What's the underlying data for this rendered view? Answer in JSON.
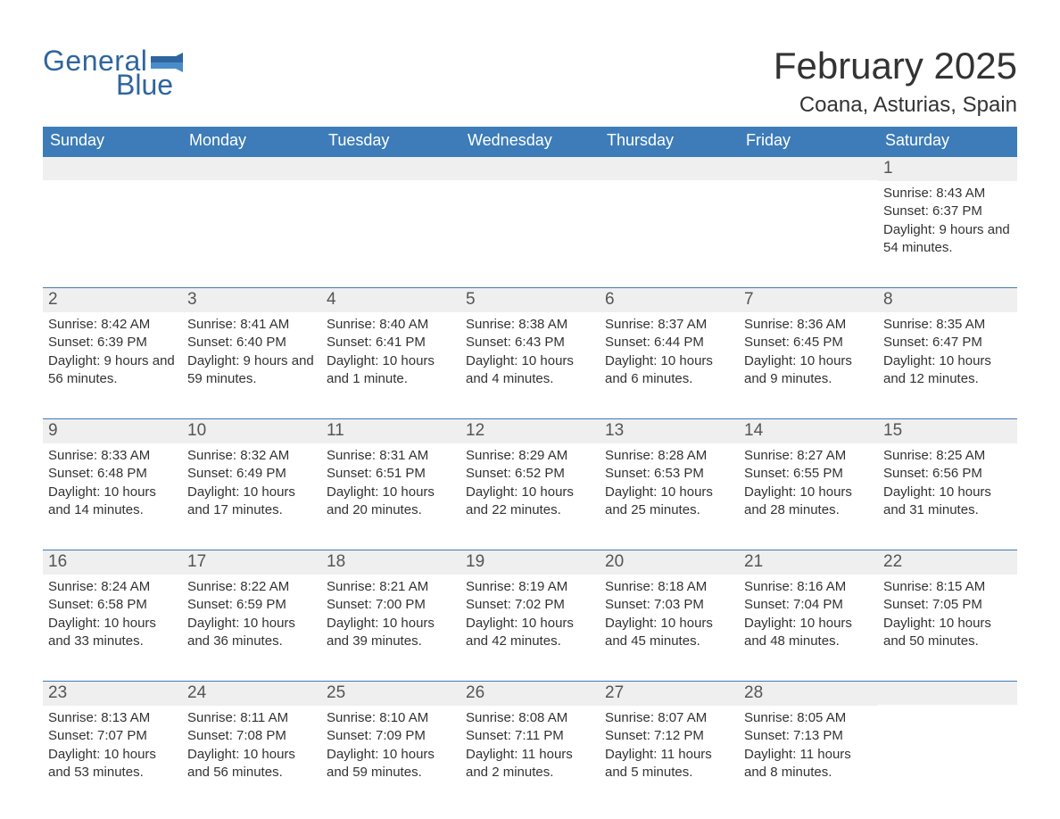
{
  "logo": {
    "word1": "General",
    "word2": "Blue",
    "flag_color": "#2f659e"
  },
  "header": {
    "month_title": "February 2025",
    "location": "Coana, Asturias, Spain"
  },
  "weekdays": [
    "Sunday",
    "Monday",
    "Tuesday",
    "Wednesday",
    "Thursday",
    "Friday",
    "Saturday"
  ],
  "colors": {
    "header_bg": "#3d7cb8",
    "header_text": "#ffffff",
    "strip_bg": "#efefef",
    "rule": "#3d7cb8",
    "text": "#333333",
    "logo": "#2f659e"
  },
  "weeks": [
    [
      {
        "day": "",
        "sunrise": "",
        "sunset": "",
        "daylight": ""
      },
      {
        "day": "",
        "sunrise": "",
        "sunset": "",
        "daylight": ""
      },
      {
        "day": "",
        "sunrise": "",
        "sunset": "",
        "daylight": ""
      },
      {
        "day": "",
        "sunrise": "",
        "sunset": "",
        "daylight": ""
      },
      {
        "day": "",
        "sunrise": "",
        "sunset": "",
        "daylight": ""
      },
      {
        "day": "",
        "sunrise": "",
        "sunset": "",
        "daylight": ""
      },
      {
        "day": "1",
        "sunrise": "Sunrise: 8:43 AM",
        "sunset": "Sunset: 6:37 PM",
        "daylight": "Daylight: 9 hours and 54 minutes."
      }
    ],
    [
      {
        "day": "2",
        "sunrise": "Sunrise: 8:42 AM",
        "sunset": "Sunset: 6:39 PM",
        "daylight": "Daylight: 9 hours and 56 minutes."
      },
      {
        "day": "3",
        "sunrise": "Sunrise: 8:41 AM",
        "sunset": "Sunset: 6:40 PM",
        "daylight": "Daylight: 9 hours and 59 minutes."
      },
      {
        "day": "4",
        "sunrise": "Sunrise: 8:40 AM",
        "sunset": "Sunset: 6:41 PM",
        "daylight": "Daylight: 10 hours and 1 minute."
      },
      {
        "day": "5",
        "sunrise": "Sunrise: 8:38 AM",
        "sunset": "Sunset: 6:43 PM",
        "daylight": "Daylight: 10 hours and 4 minutes."
      },
      {
        "day": "6",
        "sunrise": "Sunrise: 8:37 AM",
        "sunset": "Sunset: 6:44 PM",
        "daylight": "Daylight: 10 hours and 6 minutes."
      },
      {
        "day": "7",
        "sunrise": "Sunrise: 8:36 AM",
        "sunset": "Sunset: 6:45 PM",
        "daylight": "Daylight: 10 hours and 9 minutes."
      },
      {
        "day": "8",
        "sunrise": "Sunrise: 8:35 AM",
        "sunset": "Sunset: 6:47 PM",
        "daylight": "Daylight: 10 hours and 12 minutes."
      }
    ],
    [
      {
        "day": "9",
        "sunrise": "Sunrise: 8:33 AM",
        "sunset": "Sunset: 6:48 PM",
        "daylight": "Daylight: 10 hours and 14 minutes."
      },
      {
        "day": "10",
        "sunrise": "Sunrise: 8:32 AM",
        "sunset": "Sunset: 6:49 PM",
        "daylight": "Daylight: 10 hours and 17 minutes."
      },
      {
        "day": "11",
        "sunrise": "Sunrise: 8:31 AM",
        "sunset": "Sunset: 6:51 PM",
        "daylight": "Daylight: 10 hours and 20 minutes."
      },
      {
        "day": "12",
        "sunrise": "Sunrise: 8:29 AM",
        "sunset": "Sunset: 6:52 PM",
        "daylight": "Daylight: 10 hours and 22 minutes."
      },
      {
        "day": "13",
        "sunrise": "Sunrise: 8:28 AM",
        "sunset": "Sunset: 6:53 PM",
        "daylight": "Daylight: 10 hours and 25 minutes."
      },
      {
        "day": "14",
        "sunrise": "Sunrise: 8:27 AM",
        "sunset": "Sunset: 6:55 PM",
        "daylight": "Daylight: 10 hours and 28 minutes."
      },
      {
        "day": "15",
        "sunrise": "Sunrise: 8:25 AM",
        "sunset": "Sunset: 6:56 PM",
        "daylight": "Daylight: 10 hours and 31 minutes."
      }
    ],
    [
      {
        "day": "16",
        "sunrise": "Sunrise: 8:24 AM",
        "sunset": "Sunset: 6:58 PM",
        "daylight": "Daylight: 10 hours and 33 minutes."
      },
      {
        "day": "17",
        "sunrise": "Sunrise: 8:22 AM",
        "sunset": "Sunset: 6:59 PM",
        "daylight": "Daylight: 10 hours and 36 minutes."
      },
      {
        "day": "18",
        "sunrise": "Sunrise: 8:21 AM",
        "sunset": "Sunset: 7:00 PM",
        "daylight": "Daylight: 10 hours and 39 minutes."
      },
      {
        "day": "19",
        "sunrise": "Sunrise: 8:19 AM",
        "sunset": "Sunset: 7:02 PM",
        "daylight": "Daylight: 10 hours and 42 minutes."
      },
      {
        "day": "20",
        "sunrise": "Sunrise: 8:18 AM",
        "sunset": "Sunset: 7:03 PM",
        "daylight": "Daylight: 10 hours and 45 minutes."
      },
      {
        "day": "21",
        "sunrise": "Sunrise: 8:16 AM",
        "sunset": "Sunset: 7:04 PM",
        "daylight": "Daylight: 10 hours and 48 minutes."
      },
      {
        "day": "22",
        "sunrise": "Sunrise: 8:15 AM",
        "sunset": "Sunset: 7:05 PM",
        "daylight": "Daylight: 10 hours and 50 minutes."
      }
    ],
    [
      {
        "day": "23",
        "sunrise": "Sunrise: 8:13 AM",
        "sunset": "Sunset: 7:07 PM",
        "daylight": "Daylight: 10 hours and 53 minutes."
      },
      {
        "day": "24",
        "sunrise": "Sunrise: 8:11 AM",
        "sunset": "Sunset: 7:08 PM",
        "daylight": "Daylight: 10 hours and 56 minutes."
      },
      {
        "day": "25",
        "sunrise": "Sunrise: 8:10 AM",
        "sunset": "Sunset: 7:09 PM",
        "daylight": "Daylight: 10 hours and 59 minutes."
      },
      {
        "day": "26",
        "sunrise": "Sunrise: 8:08 AM",
        "sunset": "Sunset: 7:11 PM",
        "daylight": "Daylight: 11 hours and 2 minutes."
      },
      {
        "day": "27",
        "sunrise": "Sunrise: 8:07 AM",
        "sunset": "Sunset: 7:12 PM",
        "daylight": "Daylight: 11 hours and 5 minutes."
      },
      {
        "day": "28",
        "sunrise": "Sunrise: 8:05 AM",
        "sunset": "Sunset: 7:13 PM",
        "daylight": "Daylight: 11 hours and 8 minutes."
      },
      {
        "day": "",
        "sunrise": "",
        "sunset": "",
        "daylight": ""
      }
    ]
  ]
}
